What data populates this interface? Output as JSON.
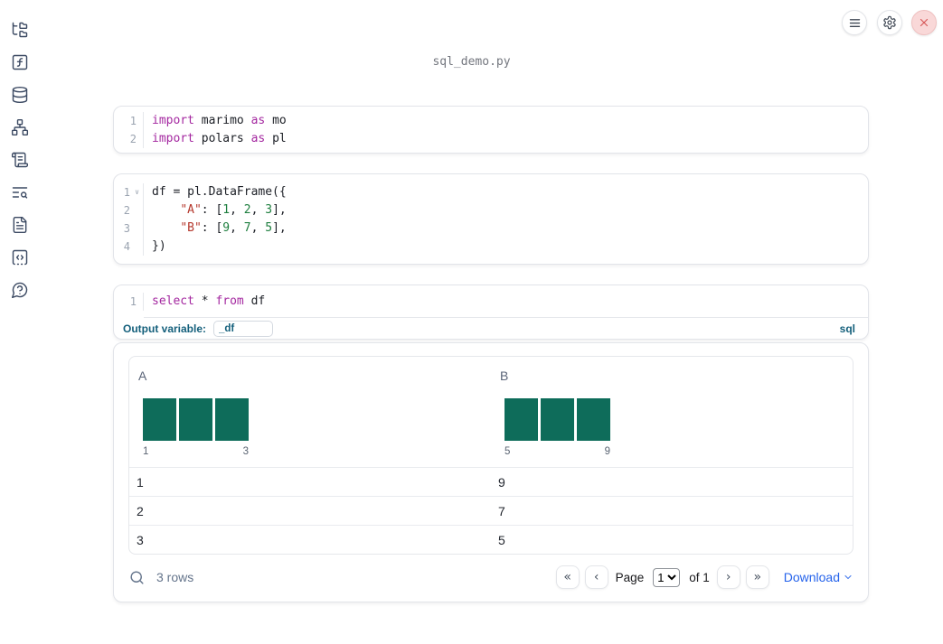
{
  "header": {
    "title": "sql_demo.py"
  },
  "toolbar": {
    "buttons": [
      {
        "icon": "menu-icon"
      },
      {
        "icon": "settings-icon"
      },
      {
        "icon": "close-icon"
      }
    ]
  },
  "sidebar": {
    "items": [
      {
        "icon": "file-explorer-icon"
      },
      {
        "icon": "function-variables-icon"
      },
      {
        "icon": "datasources-icon"
      },
      {
        "icon": "dependency-graph-icon"
      },
      {
        "icon": "scratchpad-icon"
      },
      {
        "icon": "outline-search-icon"
      },
      {
        "icon": "documentation-icon"
      },
      {
        "icon": "snippets-icon"
      },
      {
        "icon": "help-icon"
      }
    ]
  },
  "cells": {
    "imports": {
      "lines": [
        {
          "num": "1",
          "tokens": [
            {
              "c": "kw",
              "t": "import"
            },
            {
              "c": "pl",
              "t": " marimo "
            },
            {
              "c": "kw",
              "t": "as"
            },
            {
              "c": "pl",
              "t": " mo"
            }
          ]
        },
        {
          "num": "2",
          "tokens": [
            {
              "c": "kw",
              "t": "import"
            },
            {
              "c": "pl",
              "t": " polars "
            },
            {
              "c": "kw",
              "t": "as"
            },
            {
              "c": "pl",
              "t": " pl"
            }
          ]
        }
      ]
    },
    "dataframe": {
      "lines": [
        {
          "num": "1",
          "fold": true,
          "tokens": [
            {
              "c": "pl",
              "t": "df = pl.DataFrame({"
            }
          ]
        },
        {
          "num": "2",
          "tokens": [
            {
              "c": "pl",
              "t": "    "
            },
            {
              "c": "str",
              "t": "\"A\""
            },
            {
              "c": "pl",
              "t": ": ["
            },
            {
              "c": "num",
              "t": "1"
            },
            {
              "c": "pl",
              "t": ", "
            },
            {
              "c": "num",
              "t": "2"
            },
            {
              "c": "pl",
              "t": ", "
            },
            {
              "c": "num",
              "t": "3"
            },
            {
              "c": "pl",
              "t": "],"
            }
          ]
        },
        {
          "num": "3",
          "tokens": [
            {
              "c": "pl",
              "t": "    "
            },
            {
              "c": "str",
              "t": "\"B\""
            },
            {
              "c": "pl",
              "t": ": ["
            },
            {
              "c": "num",
              "t": "9"
            },
            {
              "c": "pl",
              "t": ", "
            },
            {
              "c": "num",
              "t": "7"
            },
            {
              "c": "pl",
              "t": ", "
            },
            {
              "c": "num",
              "t": "5"
            },
            {
              "c": "pl",
              "t": "],"
            }
          ]
        },
        {
          "num": "4",
          "tokens": [
            {
              "c": "pl",
              "t": "})"
            }
          ]
        }
      ]
    },
    "sql": {
      "lines": [
        {
          "num": "1",
          "tokens": [
            {
              "c": "kw",
              "t": "select"
            },
            {
              "c": "pl",
              "t": " * "
            },
            {
              "c": "kw",
              "t": "from"
            },
            {
              "c": "pl",
              "t": " df"
            }
          ]
        }
      ],
      "footer": {
        "output_variable_label": "Output variable:",
        "output_variable_value": "_df",
        "language_badge": "sql"
      }
    }
  },
  "output_table": {
    "columns": [
      {
        "name": "A"
      },
      {
        "name": "B"
      }
    ],
    "rows": [
      [
        "1",
        "9"
      ],
      [
        "2",
        "7"
      ],
      [
        "3",
        "5"
      ]
    ],
    "footer": {
      "row_count": "3 rows",
      "page_label": "Page",
      "page_value": "1",
      "page_total_label": "of 1",
      "download_label": "Download"
    }
  },
  "pagination_icons": {
    "first": "«",
    "prev": "‹",
    "next": "›",
    "last": "»"
  },
  "chart_data": [
    {
      "type": "bar",
      "title": "Column A mini histogram",
      "categories": [
        "1",
        "2",
        "3"
      ],
      "values": [
        1,
        1,
        1
      ],
      "x_tick_labels": [
        "1",
        "3"
      ],
      "ylim": [
        0,
        1
      ],
      "bar_color": "#0e6c5a",
      "grid": false,
      "legend": "none"
    },
    {
      "type": "bar",
      "title": "Column B mini histogram",
      "categories": [
        "5",
        "7",
        "9"
      ],
      "values": [
        1,
        1,
        1
      ],
      "x_tick_labels": [
        "5",
        "9"
      ],
      "ylim": [
        0,
        1
      ],
      "bar_color": "#0e6c5a",
      "grid": false,
      "legend": "none"
    }
  ],
  "colors": {
    "histogram_bar": "#0e6c5a",
    "sql_accent": "#15607c",
    "download_link": "#2563eb",
    "close_red": "#d65757",
    "keyword": "#a428a0",
    "string": "#b5392e",
    "number": "#1d7e3e"
  }
}
